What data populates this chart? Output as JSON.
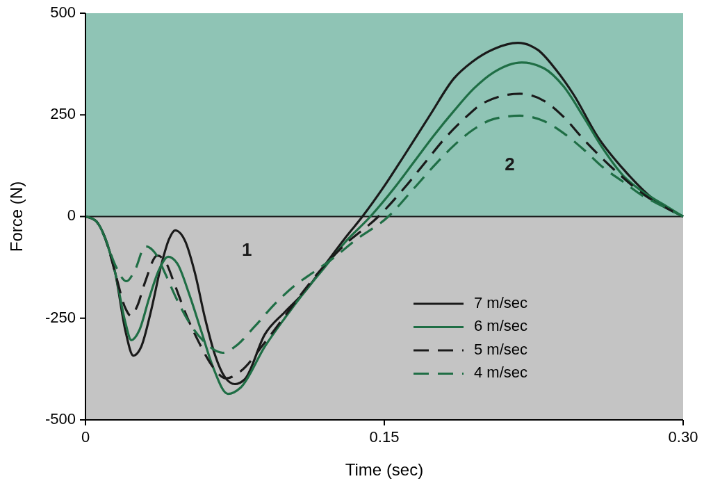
{
  "chart_data": {
    "type": "line",
    "xlabel": "Time (sec)",
    "ylabel": "Force (N)",
    "xlim": [
      0,
      0.3
    ],
    "ylim": [
      -500,
      500
    ],
    "xticks": [
      0,
      0.15,
      {
        "value": 0.3,
        "label": "0.30"
      }
    ],
    "yticks": [
      -500,
      -250,
      0,
      250,
      500
    ],
    "legend": "bottom right",
    "grid": false,
    "marker": "none",
    "bands": [
      {
        "axis": "y",
        "from": -500,
        "to": 0,
        "label": "1",
        "color": "#c4c4c4"
      },
      {
        "axis": "y",
        "from": 0,
        "to": 500,
        "label": "2",
        "color": "#8fc4b5"
      }
    ],
    "ref_lines": [
      {
        "axis": "y",
        "value": 0,
        "color": "#1a1a1a"
      }
    ],
    "series": [
      {
        "name": "7 m/sec",
        "color": "#1a1a1a",
        "line_style": "solid",
        "x": [
          0,
          0.005,
          0.01,
          0.015,
          0.02,
          0.024,
          0.028,
          0.033,
          0.038,
          0.042,
          0.045,
          0.05,
          0.055,
          0.06,
          0.065,
          0.07,
          0.075,
          0.08,
          0.09,
          0.1,
          0.11,
          0.12,
          0.13,
          0.139,
          0.15,
          0.16,
          0.173,
          0.185,
          0.194,
          0.205,
          0.217,
          0.227,
          0.236,
          0.245,
          0.257,
          0.271,
          0.285,
          0.3
        ],
        "values": [
          0,
          -10,
          -55,
          -140,
          -280,
          -342,
          -320,
          -230,
          -120,
          -55,
          -34,
          -60,
          -140,
          -250,
          -340,
          -395,
          -412,
          -400,
          -290,
          -235,
          -185,
          -120,
          -55,
          0,
          75,
          150,
          250,
          340,
          380,
          412,
          427,
          410,
          362,
          300,
          197,
          111,
          43,
          0
        ]
      },
      {
        "name": "6 m/sec",
        "color": "#1f6e45",
        "line_style": "solid",
        "x": [
          0,
          0.005,
          0.01,
          0.015,
          0.02,
          0.023,
          0.027,
          0.032,
          0.037,
          0.0415,
          0.046,
          0.052,
          0.058,
          0.064,
          0.0715,
          0.078,
          0.09,
          0.1,
          0.11,
          0.12,
          0.13,
          0.143,
          0.155,
          0.165,
          0.175,
          0.185,
          0.195,
          0.205,
          0.219,
          0.23,
          0.24,
          0.25,
          0.26,
          0.27,
          0.28,
          0.29,
          0.3
        ],
        "values": [
          0,
          -10,
          -55,
          -140,
          -260,
          -304,
          -280,
          -200,
          -130,
          -99,
          -115,
          -190,
          -280,
          -370,
          -436,
          -420,
          -320,
          -250,
          -185,
          -125,
          -65,
          0,
          70,
          135,
          200,
          260,
          315,
          355,
          379,
          365,
          320,
          245,
          165,
          100,
          60,
          30,
          0
        ]
      },
      {
        "name": "5 m/sec",
        "color": "#1a1a1a",
        "line_style": "dashed",
        "x": [
          0,
          0.005,
          0.01,
          0.015,
          0.02,
          0.0227,
          0.026,
          0.03,
          0.036,
          0.04,
          0.045,
          0.05,
          0.057,
          0.064,
          0.0705,
          0.078,
          0.09,
          0.1,
          0.11,
          0.12,
          0.13,
          0.147,
          0.16,
          0.17,
          0.18,
          0.19,
          0.2,
          0.218,
          0.23,
          0.24,
          0.25,
          0.26,
          0.27,
          0.28,
          0.29,
          0.3
        ],
        "values": [
          0,
          -10,
          -55,
          -140,
          -225,
          -244,
          -220,
          -160,
          -96,
          -110,
          -170,
          -235,
          -310,
          -370,
          -398,
          -380,
          -310,
          -245,
          -180,
          -120,
          -70,
          0,
          70,
          130,
          190,
          240,
          280,
          302,
          285,
          245,
          190,
          140,
          95,
          55,
          25,
          0
        ]
      },
      {
        "name": "4 m/sec",
        "color": "#1f6e45",
        "line_style": "dashed",
        "x": [
          0,
          0.005,
          0.01,
          0.015,
          0.0206,
          0.025,
          0.03,
          0.035,
          0.04,
          0.045,
          0.052,
          0.06,
          0.069,
          0.075,
          0.085,
          0.095,
          0.105,
          0.115,
          0.125,
          0.135,
          0.152,
          0.165,
          0.175,
          0.185,
          0.195,
          0.205,
          0.218,
          0.23,
          0.24,
          0.25,
          0.26,
          0.27,
          0.28,
          0.29,
          0.3
        ],
        "values": [
          0,
          -10,
          -55,
          -120,
          -159,
          -130,
          -73,
          -90,
          -140,
          -195,
          -260,
          -310,
          -335,
          -320,
          -270,
          -215,
          -170,
          -135,
          -100,
          -60,
          0,
          70,
          125,
          175,
          215,
          240,
          248,
          235,
          205,
          165,
          120,
          85,
          50,
          25,
          0
        ]
      }
    ]
  }
}
